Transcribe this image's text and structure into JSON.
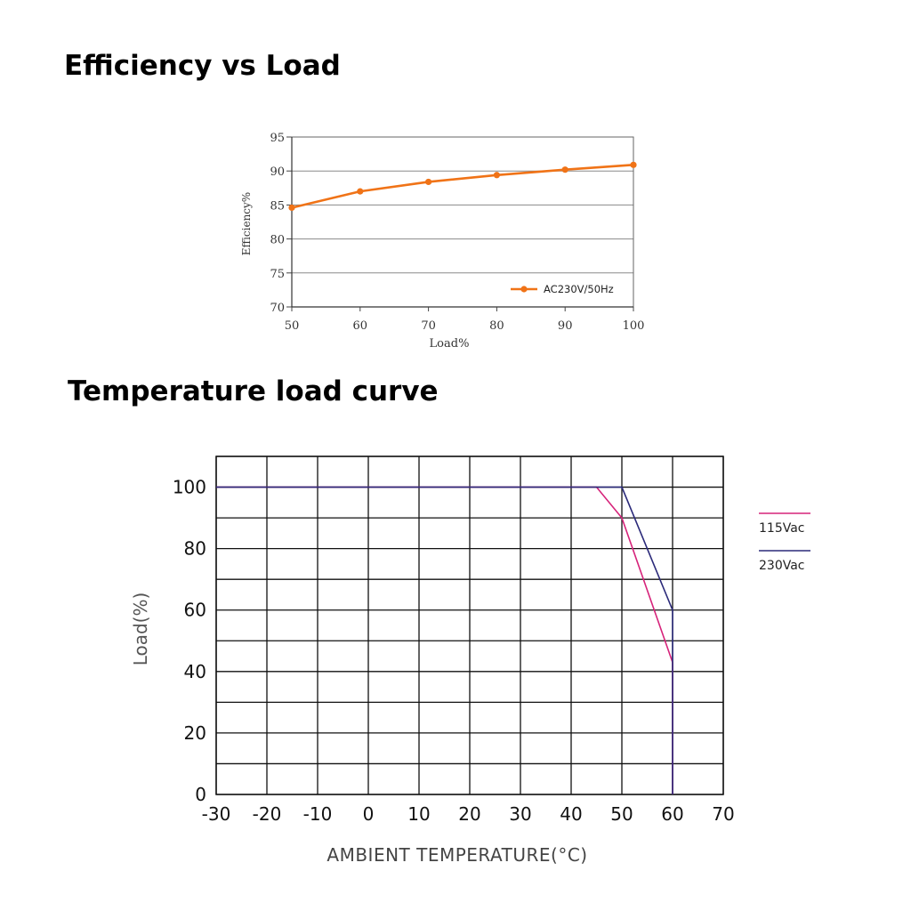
{
  "chart_data": [
    {
      "type": "line",
      "title": "Efficiency vs Load",
      "xlabel": "Load%",
      "ylabel": "Efficiency%",
      "xlim": [
        50,
        100
      ],
      "ylim": [
        70,
        95
      ],
      "xticks": [
        50,
        60,
        70,
        80,
        90,
        100
      ],
      "yticks": [
        70,
        75,
        80,
        85,
        90,
        95
      ],
      "grid": "horizontal",
      "legend": "bottom-right",
      "series": [
        {
          "name": "AC230V/50Hz",
          "color": "#F07317",
          "x": [
            50,
            60,
            70,
            80,
            90,
            100
          ],
          "y": [
            84.6,
            87.0,
            88.4,
            89.4,
            90.2,
            90.9
          ]
        }
      ]
    },
    {
      "type": "line",
      "title": "Temperature load curve",
      "xlabel": "AMBIENT TEMPERATURE(°C)",
      "ylabel": "Load(%)",
      "xlim": [
        -30,
        70
      ],
      "ylim": [
        0,
        110
      ],
      "xticks": [
        -30,
        -20,
        -10,
        0,
        10,
        20,
        30,
        40,
        50,
        60,
        70
      ],
      "yticks": [
        0,
        20,
        40,
        60,
        80,
        100
      ],
      "grid": true,
      "legend": "right",
      "series": [
        {
          "name": "115Vac",
          "color": "#D6237A",
          "x": [
            -30,
            45,
            50,
            60,
            60
          ],
          "y": [
            100,
            100,
            90,
            43,
            0
          ]
        },
        {
          "name": "230Vac",
          "color": "#2B2A7A",
          "x": [
            -30,
            50,
            60,
            60
          ],
          "y": [
            100,
            100,
            60,
            0
          ]
        }
      ]
    }
  ]
}
